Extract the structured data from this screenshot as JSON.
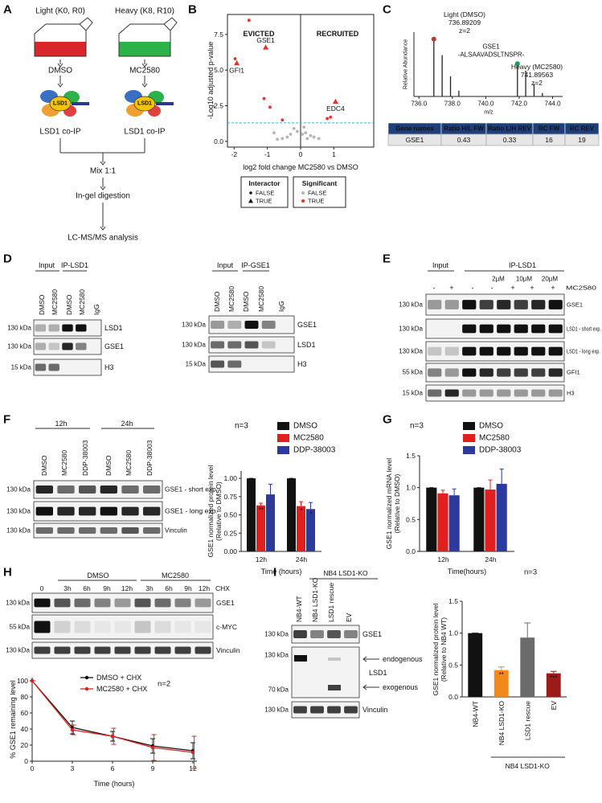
{
  "panel_a": {
    "label": "A",
    "light": "Light (K0, R0)",
    "heavy": "Heavy (K8, R10)",
    "light_treatment": "DMSO",
    "heavy_treatment": "MC2580",
    "complex_light": "LSD1",
    "complex_heavy": "LSD1",
    "ip_light": "LSD1 co-IP",
    "ip_heavy": "LSD1 co-IP",
    "steps": [
      "Mix 1:1",
      "In-gel digestion",
      "LC-MS/MS analysis"
    ],
    "light_color": "#d8262a",
    "heavy_color": "#2bb34a"
  },
  "panel_b": {
    "label": "B",
    "chart_data": {
      "type": "scatter",
      "ylabel": "-Log10 adjusted p-value",
      "xlabel": "log2 fold change MC2580 vs DMSO",
      "regions": [
        "EVICTED",
        "RECRUITED"
      ],
      "xlim": [
        -2.2,
        2.2
      ],
      "ylim": [
        -0.4,
        8.9
      ],
      "xticks": [
        -2,
        -1,
        0,
        1
      ],
      "yticks": [
        {
          "value": 0,
          "label": "0.0"
        },
        {
          "value": 2.5,
          "label": "2.5"
        },
        {
          "value": 5,
          "label": "5.0"
        },
        {
          "value": 7.5,
          "label": "7.5"
        }
      ],
      "threshold": 1.3,
      "threshold_color": "#29b6d6",
      "x": [
        -1.05,
        -1.92,
        1.05,
        -1.55,
        -1.97,
        -1.1,
        -0.92,
        -0.55,
        0.8,
        0.9,
        -0.2,
        -0.1,
        0.05,
        0.15,
        0.3,
        -0.3,
        0.4,
        -0.4,
        0.55,
        -0.55,
        0.2,
        -0.7,
        0.1,
        -0.8
      ],
      "y": [
        6.6,
        5.5,
        2.8,
        8.5,
        5.8,
        3.0,
        2.4,
        1.5,
        1.6,
        1.7,
        0.9,
        0.7,
        0.5,
        0.6,
        0.4,
        0.5,
        0.3,
        0.3,
        0.2,
        0.2,
        0.2,
        0.15,
        1.0,
        0.6
      ],
      "interactor": [
        true,
        true,
        true,
        false,
        false,
        false,
        false,
        false,
        false,
        false,
        false,
        false,
        false,
        false,
        false,
        false,
        false,
        false,
        false,
        false,
        false,
        false,
        false,
        false
      ],
      "significant": [
        true,
        true,
        true,
        true,
        true,
        true,
        true,
        true,
        true,
        true,
        false,
        false,
        false,
        false,
        false,
        false,
        false,
        false,
        false,
        false,
        false,
        false,
        false,
        false
      ],
      "point_labels": [
        "GSE1",
        "GFI1",
        "EDC4",
        null,
        null,
        null,
        null,
        null,
        null,
        null,
        null,
        null,
        null,
        null,
        null,
        null,
        null,
        null,
        null,
        null,
        null,
        null,
        null,
        null
      ],
      "point_label_colors": [
        "#3a4fa0",
        "#e8302a",
        "#e8302a",
        null,
        null,
        null,
        null,
        null,
        null,
        null,
        null,
        null,
        null,
        null,
        null,
        null,
        null,
        null,
        null,
        null,
        null,
        null,
        null,
        null
      ],
      "significant_colors": [
        "#b5b5b5",
        "#e8302a"
      ],
      "legend": [
        {
          "title": "Interactor",
          "entries": [
            "FALSE",
            "TRUE"
          ]
        },
        {
          "title": "Significant",
          "entries": [
            "FALSE",
            "TRUE"
          ]
        }
      ]
    }
  },
  "panel_c": {
    "label": "C",
    "chart_data": {
      "type": "spectrum",
      "ylabel": "Relative Abundance",
      "xlabel": "m/z",
      "xlim": [
        735.7,
        744.6
      ],
      "ylim": [
        0,
        112
      ],
      "xticks": [
        {
          "value": 736,
          "label": "736.0"
        },
        {
          "value": 738,
          "label": "738.0"
        },
        {
          "value": 740,
          "label": "740.0"
        },
        {
          "value": 742,
          "label": "742.0"
        },
        {
          "value": 744,
          "label": "744.0"
        }
      ],
      "x": [
        736.89209,
        737.39,
        737.89,
        738.39,
        741.89563,
        742.39,
        742.89,
        743.39
      ],
      "values": [
        100,
        72,
        35,
        10,
        57,
        45,
        22,
        6
      ],
      "color": "#222",
      "light": [
        "Light (DMSO)",
        "736.89209",
        "z=2"
      ],
      "peptide": [
        "GSE1",
        "-ALSAAVADSLTNSPR-"
      ],
      "heavy": [
        "Heavy (MC2580)",
        "741.89563",
        "z=2"
      ],
      "light_marker": "#c0392b",
      "heavy_marker": "#1a9a5a"
    },
    "table": {
      "header": [
        "Gene names",
        "Ratio H/L FW",
        "Ratio L/H REV",
        "RC FW",
        "RC REV"
      ],
      "rows": [
        [
          "GSE1",
          "0.43",
          "0.33",
          "16",
          "19"
        ]
      ],
      "header_color": "#1f3f7a"
    }
  },
  "panel_d": {
    "label": "D",
    "left": {
      "groups": [
        "Input",
        "IP-LSD1"
      ],
      "lanes": [
        "DMSO",
        "MC2580",
        "DMSO",
        "MC2580",
        "IgG"
      ],
      "markers": [
        "130 kDa",
        "130 kDa",
        "15 kDa"
      ],
      "bands": [
        "LSD1",
        "GSE1",
        "H3"
      ]
    },
    "right": {
      "groups": [
        "Input",
        "IP-GSE1"
      ],
      "lanes": [
        "DMSO",
        "MC2580",
        "DMSO",
        "MC2580",
        "IgG"
      ],
      "markers": [
        "130 kDa",
        "130 kDa",
        "15 kDa"
      ],
      "bands": [
        "GSE1",
        "LSD1",
        "H3"
      ]
    }
  },
  "panel_e": {
    "label": "E",
    "groups": [
      "Input",
      "IP-LSD1"
    ],
    "doses": [
      "2µM",
      "10µM",
      "20µM"
    ],
    "signs": [
      "-",
      "+",
      "-",
      "-",
      "+",
      "+",
      "+"
    ],
    "treatment": "MC2580",
    "markers": [
      "130 kDa",
      "130 kDa",
      "130 kDa",
      "55 kDa",
      "15 kDa"
    ],
    "bands": [
      "GSE1",
      "LSD1 - short exp.",
      "LSD1 - long exp.",
      "GFI1",
      "H3"
    ]
  },
  "panel_f": {
    "label": "F",
    "blot": {
      "times": [
        "12h",
        "24h"
      ],
      "lanes": [
        "DMSO",
        "MC2580",
        "DDP-38003",
        "DMSO",
        "MC2580",
        "DDP-38003"
      ],
      "markers": [
        "130 kDa",
        "130 kDa",
        "130 kDa"
      ],
      "bands": [
        "GSE1 - short exp.",
        "GSE1 - long exp.",
        "Vinculin"
      ]
    },
    "chart_data": {
      "type": "bar",
      "n": "n=3",
      "ylabel": [
        "GSE1 normalized protein level",
        "(Relative to DMSO)"
      ],
      "xlabel": "Time (hours)",
      "categories": [
        "12h",
        "24h"
      ],
      "ylim": [
        0,
        1.1
      ],
      "yticks": [
        {
          "value": 0,
          "label": "0.00"
        },
        {
          "value": 0.25,
          "label": "0.25"
        },
        {
          "value": 0.5,
          "label": "0.50"
        },
        {
          "value": 0.75,
          "label": "0.75"
        },
        {
          "value": 1,
          "label": "1.00"
        }
      ],
      "series": [
        {
          "name": "DMSO",
          "color": "#111111",
          "values": [
            1,
            1
          ],
          "errors": [
            0,
            0
          ],
          "stars": [
            null,
            null
          ]
        },
        {
          "name": "MC2580",
          "color": "#e02020",
          "values": [
            0.63,
            0.62
          ],
          "errors": [
            0.03,
            0.06
          ],
          "stars": [
            "**",
            "*"
          ]
        },
        {
          "name": "DDP-38003",
          "color": "#2c3a9e",
          "values": [
            0.78,
            0.58
          ],
          "errors": [
            0.14,
            0.09
          ],
          "stars": [
            null,
            "*"
          ]
        }
      ]
    }
  },
  "panel_g": {
    "label": "G",
    "chart_data": {
      "type": "bar",
      "n": "n=3",
      "ylabel": [
        "GSE1 normalized mRNA level",
        "(Relative to DMSO)"
      ],
      "xlabel": "Time(hours)",
      "categories": [
        "12h",
        "24h"
      ],
      "ylim": [
        0,
        1.5
      ],
      "yticks": [
        {
          "value": 0,
          "label": "0.0"
        },
        {
          "value": 0.5,
          "label": "0.5"
        },
        {
          "value": 1,
          "label": "1.0"
        },
        {
          "value": 1.5,
          "label": "1.5"
        }
      ],
      "series": [
        {
          "name": "DMSO",
          "color": "#111111",
          "values": [
            1,
            1
          ],
          "errors": [
            0,
            0
          ],
          "stars": [
            null,
            null
          ]
        },
        {
          "name": "MC2580",
          "color": "#e02020",
          "values": [
            0.91,
            0.97
          ],
          "errors": [
            0.05,
            0.15
          ],
          "stars": [
            null,
            null
          ]
        },
        {
          "name": "DDP-38003",
          "color": "#2c3a9e",
          "values": [
            0.88,
            1.06
          ],
          "errors": [
            0.1,
            0.23
          ],
          "stars": [
            null,
            null
          ]
        }
      ]
    }
  },
  "panel_h": {
    "label": "H",
    "blot": {
      "treatments": [
        "DMSO",
        "MC2580"
      ],
      "agent": "CHX",
      "times": [
        "0",
        "3h",
        "6h",
        "9h",
        "12h",
        "3h",
        "6h",
        "9h",
        "12h"
      ],
      "markers": [
        "130 kDa",
        "55 kDa",
        "130 kDa"
      ],
      "bands": [
        "GSE1",
        "c-MYC",
        "Vinculin"
      ]
    },
    "chart_data": {
      "type": "line",
      "n": "n=2",
      "ylabel": "% GSE1 remaining level",
      "xlabel": "Time (hours)",
      "x": [
        0,
        3,
        6,
        9,
        12
      ],
      "xlim": [
        0,
        12.3
      ],
      "ylim": [
        0,
        104
      ],
      "xticks": [
        0,
        3,
        6,
        9,
        12
      ],
      "yticks": [
        0,
        20,
        40,
        60,
        80,
        100
      ],
      "series": [
        {
          "name": "DMSO + CHX",
          "color": "#111111",
          "values": [
            100,
            42,
            31,
            19,
            13
          ],
          "errors": [
            0,
            8,
            6,
            9,
            10
          ]
        },
        {
          "name": "MC2580 + CHX",
          "color": "#e02020",
          "values": [
            100,
            39,
            31,
            17,
            11
          ],
          "errors": [
            0,
            6,
            10,
            16,
            20
          ]
        }
      ]
    }
  },
  "panel_i": {
    "label": "I",
    "blot": {
      "group": "NB4 LSD1-KO",
      "lanes": [
        "NB4-WT",
        "NB4 LSD1-KO",
        "LSD1 rescue",
        "EV"
      ],
      "markers": [
        "130 kDa",
        "130 kDa",
        "70 kDa",
        "130 kDa"
      ],
      "bands": [
        "GSE1",
        "LSD1",
        "Vinculin"
      ],
      "arrows": [
        "endogenous",
        "exogenous"
      ]
    },
    "chart_data": {
      "type": "bar",
      "n": "n=3",
      "ylabel": [
        "GSE1 normalized protein level",
        "(Relative to NB4 WT)"
      ],
      "group": "NB4 LSD1-KO",
      "categories": [
        "NB4-WT",
        "NB4 LSD1-KO",
        "LSD1 rescue",
        "EV"
      ],
      "values": [
        1,
        0.42,
        0.93,
        0.37
      ],
      "errors": [
        0,
        0.05,
        0.23,
        0.03
      ],
      "colors": [
        "#111111",
        "#f08a1c",
        "#6b6b6b",
        "#9b1b1b"
      ],
      "stars": [
        null,
        "**",
        null,
        "***"
      ],
      "ylim": [
        0,
        1.5
      ],
      "yticks": [
        {
          "value": 0,
          "label": "0.0"
        },
        {
          "value": 0.5,
          "label": "0.5"
        },
        {
          "value": 1,
          "label": "1.0"
        },
        {
          "value": 1.5,
          "label": "1.5"
        }
      ]
    }
  }
}
